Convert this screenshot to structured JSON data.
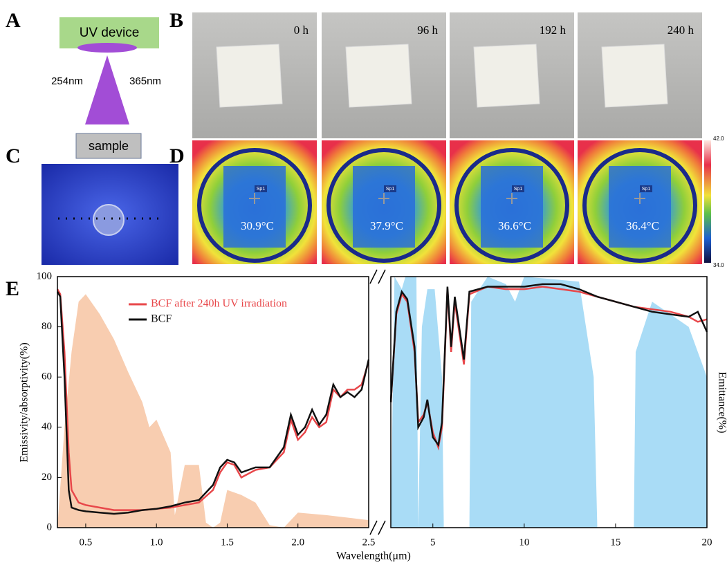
{
  "panel_a": {
    "label": "A",
    "device": "UV device",
    "wavelength_left": "254nm",
    "wavelength_right": "365nm",
    "sample": "sample"
  },
  "panel_b": {
    "label": "B",
    "times": [
      "0 h",
      "96 h",
      "192 h",
      "240 h"
    ]
  },
  "panel_c": {
    "label": "C"
  },
  "panel_d": {
    "label": "D",
    "spot": [
      "Sp1",
      "Sp1",
      "Sp1",
      "Sp1"
    ],
    "temperatures": [
      "30.9°C",
      "37.9°C",
      "36.6°C",
      "36.4°C"
    ],
    "scale_max": "42.0",
    "scale_min": "34.0"
  },
  "panel_e": {
    "label": "E"
  },
  "chart_data": {
    "type": "line",
    "x_label": "Wavelength(μm)",
    "y_label": "Emissivity/absorptivity(%)",
    "y2_label": "Emittance(%)",
    "xsegments": [
      [
        0.3,
        2.5
      ],
      [
        2.7,
        20
      ]
    ],
    "xlim": [
      0.3,
      20
    ],
    "ylim": [
      0,
      100
    ],
    "xticks": [
      0.5,
      {
        "value": 1,
        "label": "1.0"
      },
      1.5,
      {
        "value": 2,
        "label": "2.0"
      },
      2.5,
      5,
      10,
      15,
      20
    ],
    "yticks": [
      0,
      20,
      40,
      60,
      80,
      100
    ],
    "legend": "upper-left",
    "x": [
      0.3,
      0.32,
      0.35,
      0.38,
      0.4,
      0.45,
      0.5,
      0.6,
      0.7,
      0.8,
      0.9,
      1.0,
      1.1,
      1.2,
      1.3,
      1.4,
      1.45,
      1.5,
      1.55,
      1.6,
      1.7,
      1.8,
      1.9,
      1.95,
      2.0,
      2.05,
      2.1,
      2.15,
      2.2,
      2.25,
      2.3,
      2.35,
      2.4,
      2.45,
      2.5,
      2.7,
      3,
      3.3,
      3.6,
      4,
      4.2,
      4.5,
      4.7,
      5,
      5.3,
      5.5,
      5.8,
      6,
      6.2,
      6.5,
      6.7,
      7,
      8,
      9,
      10,
      11,
      12,
      13,
      14,
      15,
      16,
      17,
      18,
      19,
      19.5,
      20
    ],
    "series": [
      {
        "name": "BCF after 240h UV irradiation",
        "color": "#e8474a",
        "values": [
          95,
          93,
          70,
          30,
          15,
          10,
          9,
          8,
          7,
          7,
          7,
          7.5,
          8,
          9,
          10,
          15,
          22,
          26,
          25,
          20,
          23,
          24,
          30,
          43,
          35,
          38,
          44,
          40,
          42,
          55,
          52,
          55,
          55,
          57,
          66,
          50,
          85,
          93,
          90,
          70,
          42,
          45,
          50,
          38,
          32,
          40,
          95,
          70,
          90,
          75,
          65,
          93,
          96,
          95,
          95,
          96,
          95,
          94,
          92,
          90,
          88,
          87,
          86,
          84,
          82,
          83
        ]
      },
      {
        "name": "BCF",
        "color": "#111111",
        "values": [
          94,
          92,
          60,
          15,
          8,
          7,
          6.5,
          6,
          5.5,
          6,
          7,
          7.5,
          8.5,
          10,
          11,
          17,
          24,
          27,
          26,
          22,
          24,
          24,
          32,
          45,
          37,
          40,
          47,
          41,
          45,
          57,
          52,
          54,
          52,
          55,
          67,
          50,
          86,
          94,
          91,
          72,
          40,
          44,
          51,
          36,
          33,
          42,
          96,
          72,
          92,
          77,
          67,
          94,
          96,
          96,
          96,
          97,
          97,
          95,
          92,
          90,
          88,
          86,
          85,
          84,
          86,
          78
        ]
      }
    ],
    "areas": [
      {
        "color": "#f8cdb0",
        "x": [
          0.3,
          0.35,
          0.4,
          0.45,
          0.5,
          0.6,
          0.7,
          0.8,
          0.9,
          0.95,
          1.0,
          1.1,
          1.13,
          1.2,
          1.3,
          1.35,
          1.4,
          1.45,
          1.5,
          1.6,
          1.7,
          1.8,
          1.9,
          1.95,
          2.0,
          2.2,
          2.5
        ],
        "values": [
          0,
          40,
          70,
          90,
          93,
          85,
          75,
          62,
          50,
          40,
          43,
          30,
          5,
          25,
          25,
          2,
          0,
          2,
          15,
          13,
          10,
          1,
          0,
          3,
          6,
          5,
          3
        ]
      },
      {
        "color": "#a9dcf6",
        "x": [
          2.7,
          2.9,
          3.3,
          3.5,
          4.1,
          4.2,
          4.4,
          4.7,
          5.1,
          5.5,
          5.6,
          7,
          7.1,
          8,
          9,
          9.5,
          10,
          13,
          13.8,
          14,
          16,
          16.1,
          17,
          18,
          19,
          20
        ],
        "values": [
          0,
          100,
          95,
          100,
          100,
          0,
          80,
          95,
          95,
          60,
          0,
          0,
          90,
          100,
          97,
          90,
          100,
          98,
          60,
          0,
          0,
          70,
          90,
          85,
          80,
          60
        ]
      }
    ]
  }
}
